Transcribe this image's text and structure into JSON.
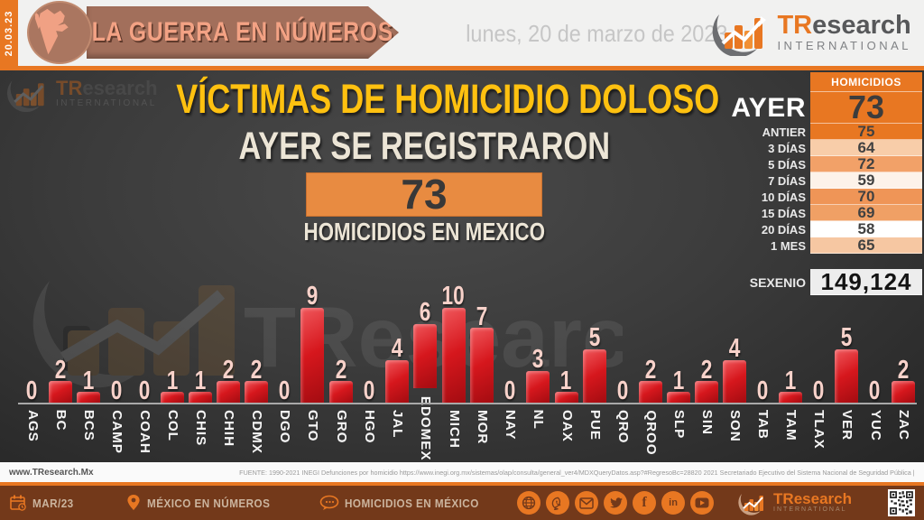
{
  "colors": {
    "accent_orange": "#e87722",
    "bar_red": "#d6171d",
    "title_yellow": "#ffc110",
    "banner_brown": "#a26f5b",
    "footer_brown": "#73391a",
    "value_pink": "#f8d2ca"
  },
  "header": {
    "date_stamp": "20.03.23",
    "banner_title": "LA GUERRA EN NÚMEROS",
    "date_long": "lunes, 20 de marzo de 2023",
    "brand_tr": "TR",
    "brand_rest": "esearch",
    "brand_sub": "INTERNATIONAL"
  },
  "headline": {
    "title": "VÍCTIMAS DE HOMICIDIO DOLOSO",
    "subtitle": "AYER SE REGISTRARON",
    "count": "73",
    "caption": "HOMICIDIOS EN MEXICO"
  },
  "summary_table": {
    "header": "HOMICIDIOS",
    "rows": [
      {
        "label": "AYER",
        "value": "73",
        "bg": "#e87722"
      },
      {
        "label": "ANTIER",
        "value": "75",
        "bg": "#e87722"
      },
      {
        "label": "3 DÍAS",
        "value": "64",
        "bg": "#f8cda9"
      },
      {
        "label": "5 DÍAS",
        "value": "72",
        "bg": "#f2a168"
      },
      {
        "label": "7 DÍAS",
        "value": "59",
        "bg": "#fdf2e9"
      },
      {
        "label": "10 DÍAS",
        "value": "70",
        "bg": "#ef9557"
      },
      {
        "label": "15 DÍAS",
        "value": "69",
        "bg": "#f0a065"
      },
      {
        "label": "20 DÍAS",
        "value": "58",
        "bg": "#ffffff"
      },
      {
        "label": "1 MES",
        "value": "65",
        "bg": "#f6c7a2"
      }
    ],
    "sexenio_label": "SEXENIO",
    "sexenio_value": "149,124"
  },
  "chart_data": {
    "type": "bar",
    "title": "",
    "categories": [
      "AGS",
      "BC",
      "BCS",
      "CAMP",
      "COAH",
      "COL",
      "CHIS",
      "CHIH",
      "CDMX",
      "DGO",
      "GTO",
      "GRO",
      "HGO",
      "JAL",
      "EDOMEX",
      "MICH",
      "MOR",
      "NAY",
      "NL",
      "OAX",
      "PUE",
      "QRO",
      "QROO",
      "SLP",
      "SIN",
      "SON",
      "TAB",
      "TAM",
      "TLAX",
      "VER",
      "YUC",
      "ZAC"
    ],
    "values": [
      0,
      2,
      1,
      0,
      0,
      1,
      1,
      2,
      2,
      0,
      9,
      2,
      0,
      4,
      6,
      10,
      7,
      0,
      3,
      1,
      5,
      0,
      2,
      1,
      2,
      4,
      0,
      1,
      0,
      5,
      0,
      2
    ],
    "xlabel": "",
    "ylabel": "",
    "ylim": [
      0,
      10
    ],
    "grid": false,
    "legend": false,
    "bar_color": "#d6171d",
    "data_label_color": "#f8d2ca"
  },
  "source": {
    "website": "www.TResearch.Mx",
    "fuente": "FUENTE: 1990-2021 INEGI Defunciones por homicidio https://www.inegi.org.mx/sistemas/olap/consulta/general_ver4/MDXQueryDatos.asp?#RegresoBc=28820   2021 Secretariado Ejecutivo del Sistema Nacional de Seguridad Pública |"
  },
  "footer": {
    "month": "MAR/23",
    "nav1": "MÉXICO EN NÚMEROS",
    "nav2": "HOMICIDIOS EN MÉXICO",
    "social": [
      "globe",
      "whatsapp",
      "email",
      "twitter",
      "facebook",
      "linkedin",
      "youtube"
    ],
    "brand_tr": "TR",
    "brand_rest": "esearch",
    "brand_sub": "INTERNATIONAL"
  }
}
